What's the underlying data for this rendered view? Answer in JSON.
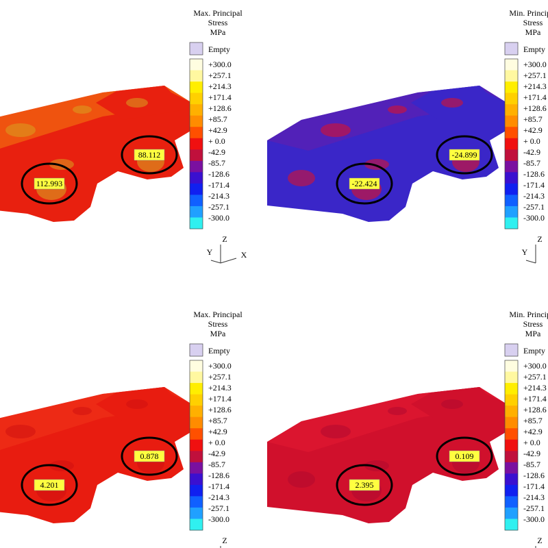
{
  "panels": [
    {
      "legend": {
        "title": [
          "Max. Principal",
          "Stress",
          "MPa"
        ],
        "empty": "Empty",
        "labels": [
          "+300.0",
          "+257.1",
          "+214.3",
          "+171.4",
          "+128.6",
          "+85.7",
          "+42.9",
          "+ 0.0",
          "-42.9",
          "-85.7",
          "-128.6",
          "-171.4",
          "-214.3",
          "-257.1",
          "-300.0"
        ]
      },
      "annotations": [
        "112.993",
        "88.112"
      ],
      "axes": [
        "Z",
        "Y",
        "X"
      ]
    },
    {
      "legend": {
        "title": [
          "Min. Principal",
          "Stress",
          "MPa"
        ],
        "empty": "Empty",
        "labels": [
          "+300.0",
          "+257.1",
          "+214.3",
          "+171.4",
          "+128.6",
          "+85.7",
          "+42.9",
          "+ 0.0",
          "-42.9",
          "-85.7",
          "-128.6",
          "-171.4",
          "-214.3",
          "-257.1",
          "-300.0"
        ]
      },
      "annotations": [
        "-22.424",
        "-24.899"
      ],
      "axes": [
        "Z",
        "Y"
      ]
    },
    {
      "legend": {
        "title": [
          "Max. Principal",
          "Stress",
          "MPa"
        ],
        "empty": "Empty",
        "labels": [
          "+300.0",
          "+257.1",
          "+214.3",
          "+171.4",
          "+128.6",
          "+85.7",
          "+42.9",
          "+ 0.0",
          "-42.9",
          "-85.7",
          "-128.6",
          "-171.4",
          "-214.3",
          "-257.1",
          "-300.0"
        ]
      },
      "annotations": [
        "4.201",
        "0.878"
      ],
      "axes": [
        "Z"
      ]
    },
    {
      "legend": {
        "title": [
          "Min. Principal",
          "Stress",
          "MPa"
        ],
        "empty": "Empty",
        "labels": [
          "+300.0",
          "+257.1",
          "+214.3",
          "+171.4",
          "+128.6",
          "+85.7",
          "+42.9",
          "+ 0.0",
          "-42.9",
          "-85.7",
          "-128.6",
          "-171.4",
          "-214.3",
          "-257.1",
          "-300.0"
        ]
      },
      "annotations": [
        "2.395",
        "0.109"
      ],
      "axes": [
        "Z"
      ]
    }
  ]
}
